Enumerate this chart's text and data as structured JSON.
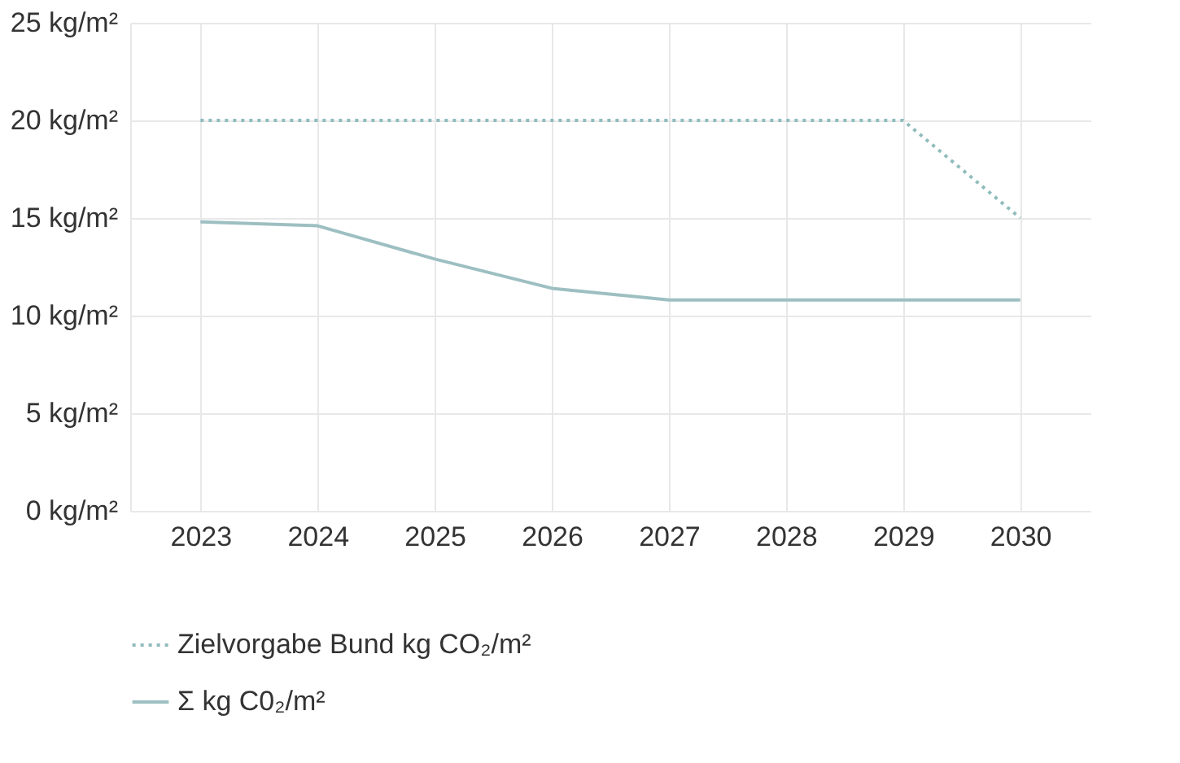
{
  "chart_data": {
    "type": "line",
    "categories": [
      "2023",
      "2024",
      "2025",
      "2026",
      "2027",
      "2028",
      "2029",
      "2030"
    ],
    "series": [
      {
        "name": "Zielvorgabe Bund kg CO₂/m²",
        "color": "#8fbcbc",
        "line_style": "dotted",
        "values": [
          20,
          20,
          20,
          20,
          20,
          20,
          20,
          15
        ]
      },
      {
        "name": "Σ kg C0₂/m²",
        "color": "#9dbfc2",
        "line_style": "solid",
        "values": [
          14.8,
          14.6,
          12.9,
          11.4,
          10.8,
          10.8,
          10.8,
          10.8
        ]
      }
    ],
    "ylim": [
      0,
      25
    ],
    "yticks": [
      {
        "value": 0,
        "label": "0 kg/m²"
      },
      {
        "value": 5,
        "label": "5 kg/m²"
      },
      {
        "value": 10,
        "label": "10 kg/m²"
      },
      {
        "value": 15,
        "label": "15 kg/m²"
      },
      {
        "value": 20,
        "label": "20 kg/m²"
      },
      {
        "value": 25,
        "label": "25 kg/m²"
      }
    ],
    "grid": true,
    "legend": "bottom left",
    "marker": "none"
  }
}
